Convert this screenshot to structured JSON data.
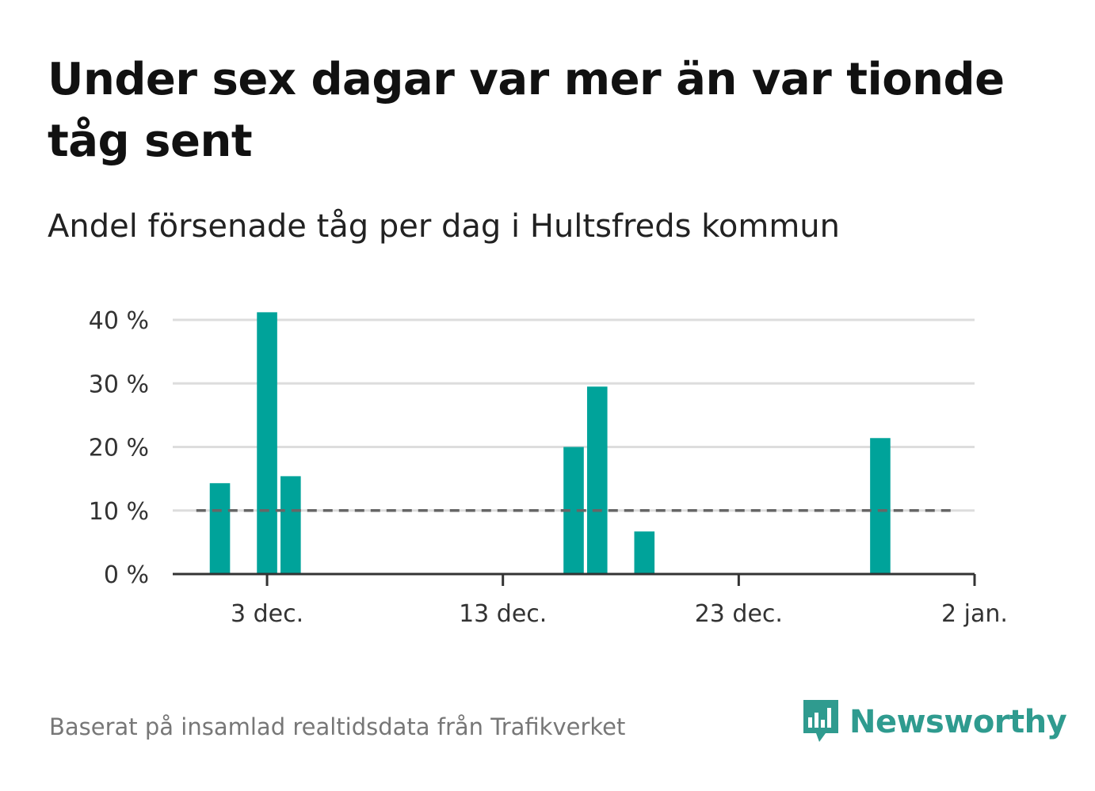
{
  "title": "Under sex dagar var mer än var tionde tåg sent",
  "subtitle": "Andel försenade tåg per dag i Hultsfreds kommun",
  "source": "Baserat på insamlad realtidsdata från Trafikverket",
  "brand": {
    "name": "Newsworthy",
    "icon": "newsworthy-bar-chart-speech-bubble-icon",
    "color": "#2f9b8f"
  },
  "chart_data": {
    "type": "bar",
    "x_unit": "day",
    "x": [
      "2024-12-01",
      "2024-12-03",
      "2024-12-04",
      "2024-12-16",
      "2024-12-17",
      "2024-12-19",
      "2024-12-29"
    ],
    "values": [
      14.3,
      41.2,
      15.4,
      20.0,
      29.5,
      6.7,
      21.4
    ],
    "y_unit": "percent",
    "ylim": [
      0,
      40
    ],
    "yticks": [
      0,
      10,
      20,
      30,
      40
    ],
    "ytick_labels": [
      "0 %",
      "10 %",
      "20 %",
      "30 %",
      "40 %"
    ],
    "xlim": [
      "2024-11-29",
      "2025-01-02"
    ],
    "xticks": [
      "2024-12-03",
      "2024-12-13",
      "2024-12-23",
      "2025-01-02"
    ],
    "xtick_labels": [
      "3 dec.",
      "13 dec.",
      "23 dec.",
      "2 jan."
    ],
    "reference_line": {
      "value": 10,
      "from": "2024-11-30",
      "to": "2025-01-01",
      "style": "dashed"
    },
    "grid": true,
    "colors": {
      "bar": "#00a39a",
      "grid": "#dddddd",
      "axis": "#333333",
      "reference": "#666666"
    }
  }
}
